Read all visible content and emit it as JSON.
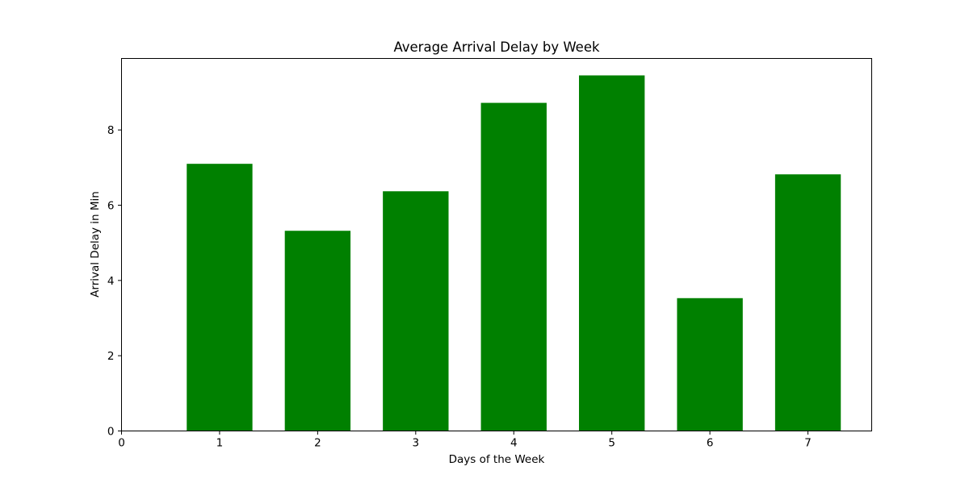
{
  "chart_data": {
    "type": "bar",
    "title": "Average Arrival Delay by Week",
    "xlabel": "Days of the Week",
    "ylabel": "Arrival Delay in Min",
    "categories": [
      "1",
      "2",
      "3",
      "4",
      "5",
      "6",
      "7"
    ],
    "x": [
      1,
      2,
      3,
      4,
      5,
      6,
      7
    ],
    "values": [
      7.1,
      5.32,
      6.37,
      8.72,
      9.45,
      3.53,
      6.82
    ],
    "xlim": [
      0,
      7.65
    ],
    "ylim": [
      0,
      9.9
    ],
    "xticks": [
      0,
      1,
      2,
      3,
      4,
      5,
      6,
      7
    ],
    "yticks": [
      0,
      2,
      4,
      6,
      8
    ],
    "bar_color": "#008000",
    "grid": false,
    "legend": "none"
  }
}
